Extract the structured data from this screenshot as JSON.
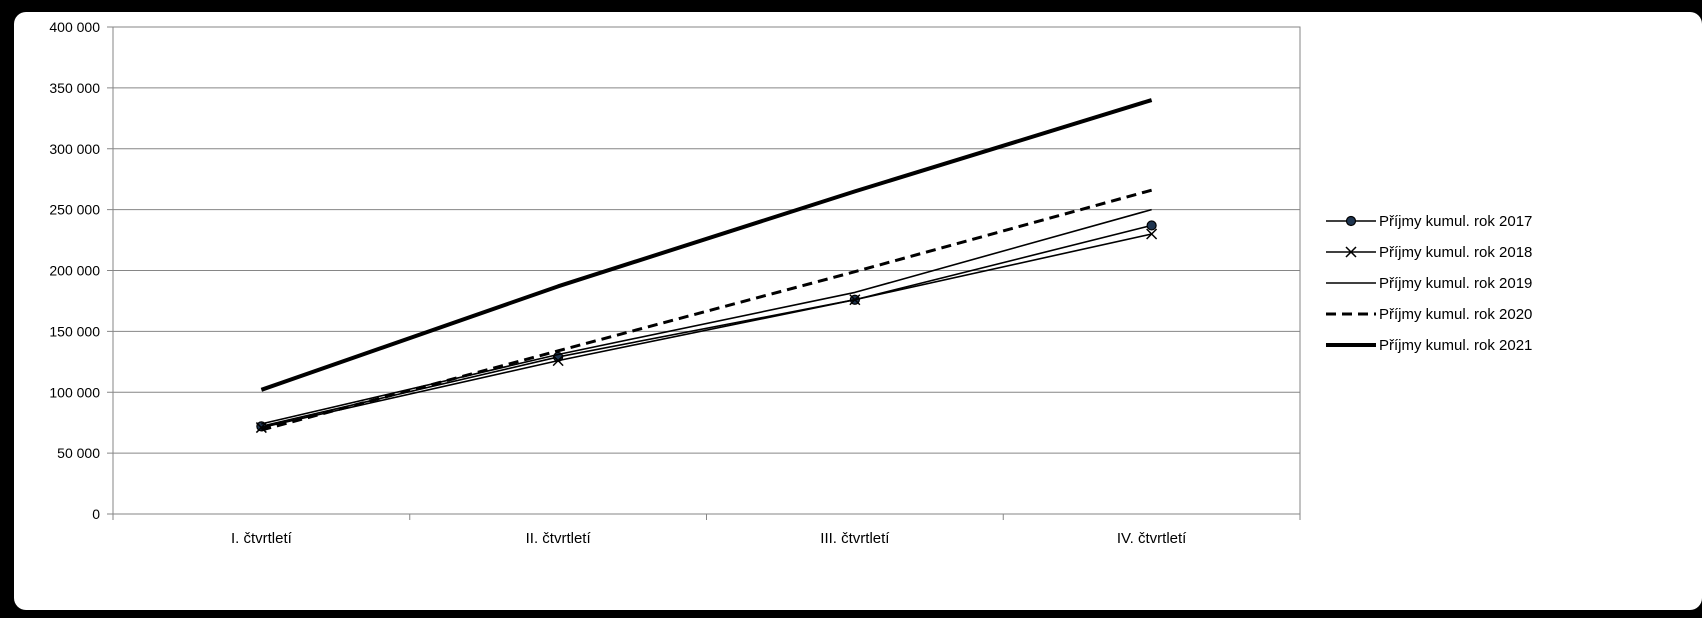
{
  "chart_data": {
    "type": "line",
    "categories": [
      "I. čtvrtletí",
      "II. čtvrtletí",
      "III. čtvrtletí",
      "IV. čtvrtletí"
    ],
    "ylim": [
      0,
      400000
    ],
    "yticks": [
      0,
      50000,
      100000,
      150000,
      200000,
      250000,
      300000,
      350000,
      400000
    ],
    "ytick_labels": [
      "0",
      "50 000",
      "100 000",
      "150 000",
      "200 000",
      "250 000",
      "300 000",
      "350 000",
      "400 000"
    ],
    "grid": true,
    "legend_position": "right",
    "series": [
      {
        "name": "Příjmy kumul. rok 2017",
        "values": [
          72000,
          129000,
          176000,
          237000
        ],
        "style": "circle-marker",
        "color": "#000000"
      },
      {
        "name": "Příjmy kumul. rok 2018",
        "values": [
          71000,
          126000,
          176000,
          230000
        ],
        "style": "x-marker",
        "color": "#000000"
      },
      {
        "name": "Příjmy kumul. rok 2019",
        "values": [
          74000,
          131000,
          182000,
          250000
        ],
        "style": "thin",
        "color": "#000000"
      },
      {
        "name": "Příjmy kumul. rok 2020",
        "values": [
          69000,
          134000,
          199000,
          266000
        ],
        "style": "dashed",
        "color": "#000000"
      },
      {
        "name": "Příjmy kumul. rok 2021",
        "values": [
          102000,
          187000,
          265000,
          340000
        ],
        "style": "thick",
        "color": "#000000"
      }
    ]
  }
}
